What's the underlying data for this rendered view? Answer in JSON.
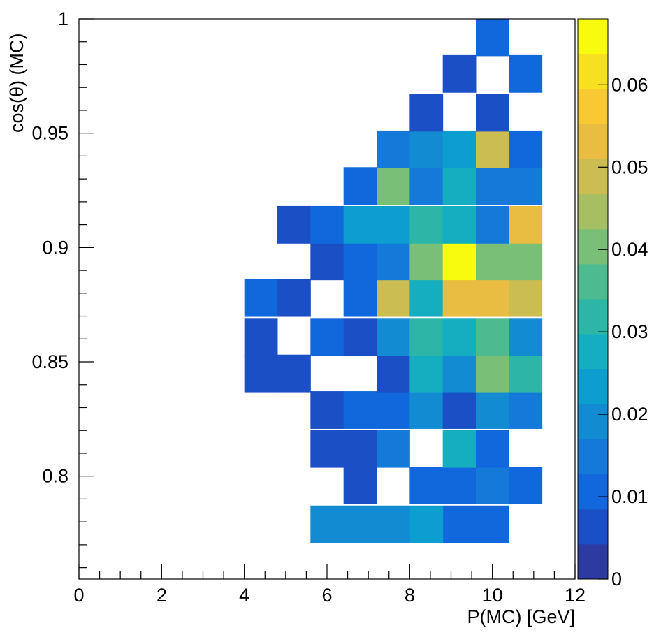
{
  "chart_data": {
    "type": "heatmap",
    "title": "",
    "xlabel": "P(MC) [GeV]",
    "ylabel": "cos(θ) (MC)",
    "xlim": [
      0,
      12
    ],
    "ylim": [
      0.755,
      1.0
    ],
    "x_bins": {
      "start": 4.0,
      "width": 0.8,
      "count": 10
    },
    "y_bins": {
      "start": 0.7715,
      "width": 0.0163,
      "count": 14
    },
    "x_ticks": [
      "0",
      "2",
      "4",
      "6",
      "8",
      "10",
      "12"
    ],
    "y_ticks": [
      "0.8",
      "0.85",
      "0.9",
      "0.95",
      "1"
    ],
    "zlim": [
      0,
      0.068
    ],
    "z_ticks": [
      "0",
      "0.01",
      "0.02",
      "0.03",
      "0.04",
      "0.05",
      "0.06"
    ],
    "grid": false,
    "colormap": "kBird",
    "cells": [
      {
        "x": 9.6,
        "y": 0.779,
        "z": 0.01
      },
      {
        "x": 8.8,
        "y": 0.779,
        "z": 0.01
      },
      {
        "x": 8.0,
        "y": 0.779,
        "z": 0.025
      },
      {
        "x": 7.2,
        "y": 0.779,
        "z": 0.019
      },
      {
        "x": 6.4,
        "y": 0.779,
        "z": 0.019
      },
      {
        "x": 5.6,
        "y": 0.779,
        "z": 0.019
      },
      {
        "x": 6.4,
        "y": 0.796,
        "z": 0.006
      },
      {
        "x": 8.0,
        "y": 0.796,
        "z": 0.012
      },
      {
        "x": 8.8,
        "y": 0.796,
        "z": 0.012
      },
      {
        "x": 9.6,
        "y": 0.796,
        "z": 0.015
      },
      {
        "x": 10.4,
        "y": 0.796,
        "z": 0.009
      },
      {
        "x": 5.6,
        "y": 0.812,
        "z": 0.006
      },
      {
        "x": 6.4,
        "y": 0.812,
        "z": 0.006
      },
      {
        "x": 7.2,
        "y": 0.812,
        "z": 0.015
      },
      {
        "x": 8.8,
        "y": 0.812,
        "z": 0.029
      },
      {
        "x": 9.6,
        "y": 0.812,
        "z": 0.011
      },
      {
        "x": 5.6,
        "y": 0.829,
        "z": 0.006
      },
      {
        "x": 6.4,
        "y": 0.829,
        "z": 0.012
      },
      {
        "x": 7.2,
        "y": 0.829,
        "z": 0.012
      },
      {
        "x": 8.0,
        "y": 0.829,
        "z": 0.017
      },
      {
        "x": 8.8,
        "y": 0.829,
        "z": 0.006
      },
      {
        "x": 9.6,
        "y": 0.829,
        "z": 0.018
      },
      {
        "x": 10.4,
        "y": 0.829,
        "z": 0.015
      },
      {
        "x": 4.0,
        "y": 0.845,
        "z": 0.006
      },
      {
        "x": 4.8,
        "y": 0.845,
        "z": 0.006
      },
      {
        "x": 7.2,
        "y": 0.845,
        "z": 0.006
      },
      {
        "x": 8.0,
        "y": 0.845,
        "z": 0.029
      },
      {
        "x": 8.8,
        "y": 0.845,
        "z": 0.021
      },
      {
        "x": 9.6,
        "y": 0.845,
        "z": 0.039
      },
      {
        "x": 10.4,
        "y": 0.845,
        "z": 0.031
      },
      {
        "x": 4.0,
        "y": 0.861,
        "z": 0.006
      },
      {
        "x": 5.6,
        "y": 0.861,
        "z": 0.012
      },
      {
        "x": 6.4,
        "y": 0.861,
        "z": 0.006
      },
      {
        "x": 7.2,
        "y": 0.861,
        "z": 0.021
      },
      {
        "x": 8.0,
        "y": 0.861,
        "z": 0.031
      },
      {
        "x": 8.8,
        "y": 0.861,
        "z": 0.028
      },
      {
        "x": 9.6,
        "y": 0.861,
        "z": 0.035
      },
      {
        "x": 10.4,
        "y": 0.861,
        "z": 0.021
      },
      {
        "x": 4.0,
        "y": 0.878,
        "z": 0.012
      },
      {
        "x": 4.8,
        "y": 0.878,
        "z": 0.006
      },
      {
        "x": 6.4,
        "y": 0.878,
        "z": 0.012
      },
      {
        "x": 7.2,
        "y": 0.878,
        "z": 0.048
      },
      {
        "x": 8.0,
        "y": 0.878,
        "z": 0.028
      },
      {
        "x": 8.8,
        "y": 0.878,
        "z": 0.053
      },
      {
        "x": 9.6,
        "y": 0.878,
        "z": 0.053
      },
      {
        "x": 10.4,
        "y": 0.878,
        "z": 0.048
      },
      {
        "x": 5.6,
        "y": 0.894,
        "z": 0.006
      },
      {
        "x": 6.4,
        "y": 0.894,
        "z": 0.012
      },
      {
        "x": 7.2,
        "y": 0.894,
        "z": 0.015
      },
      {
        "x": 8.0,
        "y": 0.894,
        "z": 0.041
      },
      {
        "x": 8.8,
        "y": 0.894,
        "z": 0.068
      },
      {
        "x": 9.6,
        "y": 0.894,
        "z": 0.041
      },
      {
        "x": 10.4,
        "y": 0.894,
        "z": 0.041
      },
      {
        "x": 4.8,
        "y": 0.91,
        "z": 0.006
      },
      {
        "x": 5.6,
        "y": 0.91,
        "z": 0.012
      },
      {
        "x": 6.4,
        "y": 0.91,
        "z": 0.022
      },
      {
        "x": 7.2,
        "y": 0.91,
        "z": 0.022
      },
      {
        "x": 8.0,
        "y": 0.91,
        "z": 0.031
      },
      {
        "x": 8.8,
        "y": 0.91,
        "z": 0.028
      },
      {
        "x": 9.6,
        "y": 0.91,
        "z": 0.015
      },
      {
        "x": 10.4,
        "y": 0.91,
        "z": 0.055
      },
      {
        "x": 6.4,
        "y": 0.927,
        "z": 0.012
      },
      {
        "x": 7.2,
        "y": 0.927,
        "z": 0.04
      },
      {
        "x": 8.0,
        "y": 0.927,
        "z": 0.015
      },
      {
        "x": 8.8,
        "y": 0.927,
        "z": 0.028
      },
      {
        "x": 9.6,
        "y": 0.927,
        "z": 0.015
      },
      {
        "x": 10.4,
        "y": 0.927,
        "z": 0.015
      },
      {
        "x": 7.2,
        "y": 0.943,
        "z": 0.015
      },
      {
        "x": 8.0,
        "y": 0.943,
        "z": 0.018
      },
      {
        "x": 8.8,
        "y": 0.943,
        "z": 0.022
      },
      {
        "x": 9.6,
        "y": 0.943,
        "z": 0.048
      },
      {
        "x": 10.4,
        "y": 0.943,
        "z": 0.009
      },
      {
        "x": 8.0,
        "y": 0.959,
        "z": 0.006
      },
      {
        "x": 9.6,
        "y": 0.959,
        "z": 0.006
      },
      {
        "x": 8.8,
        "y": 0.976,
        "z": 0.006
      },
      {
        "x": 10.4,
        "y": 0.976,
        "z": 0.01
      },
      {
        "x": 9.6,
        "y": 0.992,
        "z": 0.01
      }
    ]
  },
  "palette": [
    "#2c3aa1",
    "#1a4fc6",
    "#1168dc",
    "#1479d9",
    "#128bd3",
    "#0c9ecf",
    "#14aec0",
    "#2bb6a7",
    "#4dbb8f",
    "#7abf77",
    "#a6bf62",
    "#ccbd52",
    "#e9bd42",
    "#f8c932",
    "#f6e020",
    "#f9fb0e"
  ]
}
